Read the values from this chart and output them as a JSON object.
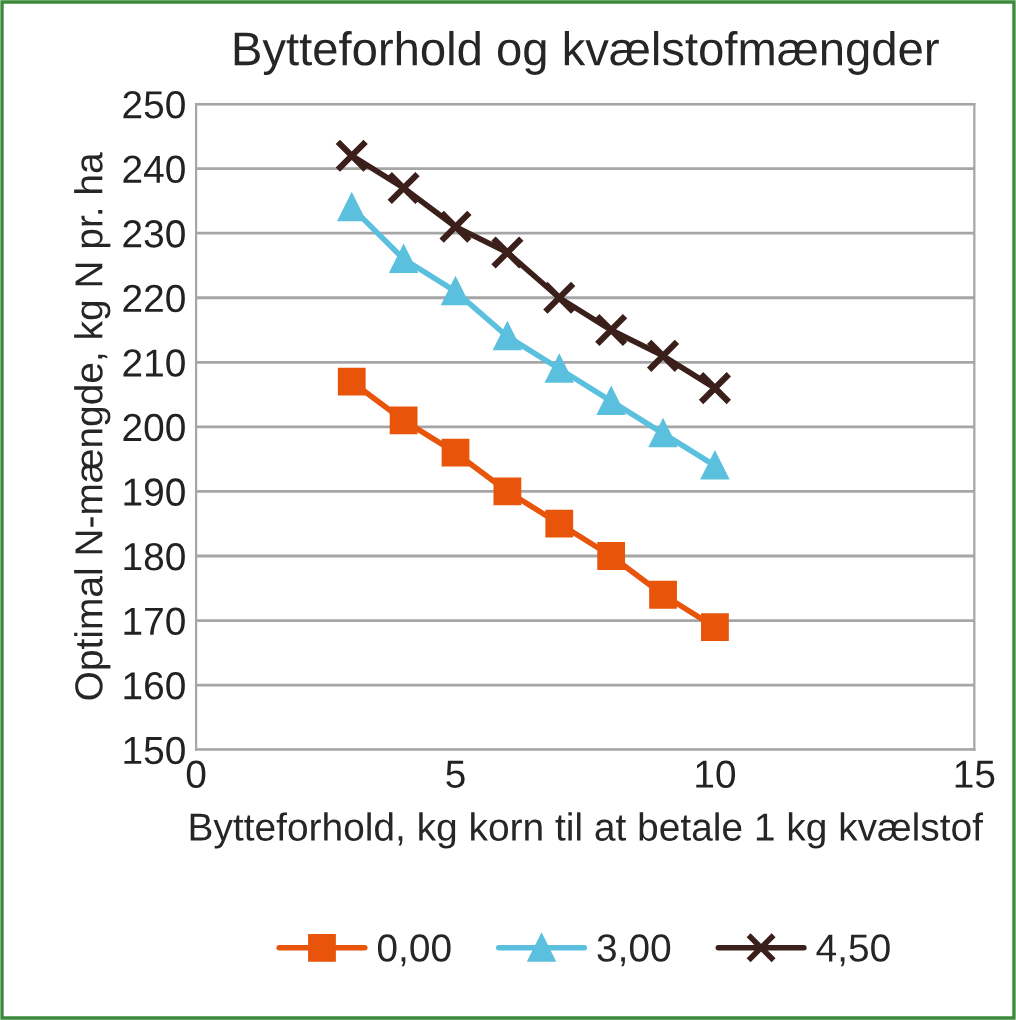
{
  "chart_data": {
    "type": "line",
    "title": "Bytteforhold og kvælstofmængder",
    "xlabel": "Bytteforhold, kg korn til at betale 1 kg kvælstof",
    "ylabel": "Optimal N-mængde, kg N pr. ha",
    "x": [
      3,
      4,
      5,
      6,
      7,
      8,
      9,
      10
    ],
    "series": [
      {
        "name": "0,00",
        "color": "#e8540a",
        "marker": "square",
        "values": [
          207,
          201,
          196,
          190,
          185,
          180,
          174,
          169
        ]
      },
      {
        "name": "3,00",
        "color": "#5bc0de",
        "marker": "triangle",
        "values": [
          234,
          226,
          221,
          214,
          209,
          204,
          199,
          194
        ]
      },
      {
        "name": "4,50",
        "color": "#3b1f1a",
        "marker": "cross",
        "values": [
          242,
          237,
          231,
          227,
          220,
          215,
          211,
          206
        ]
      }
    ],
    "xlim": [
      0,
      15
    ],
    "xticks": [
      0,
      5,
      10,
      15
    ],
    "ylim": [
      150,
      250
    ],
    "yticks": [
      150,
      160,
      170,
      180,
      190,
      200,
      210,
      220,
      230,
      240,
      250
    ],
    "grid": "y",
    "legend": "bottom",
    "line_style": "solid"
  }
}
